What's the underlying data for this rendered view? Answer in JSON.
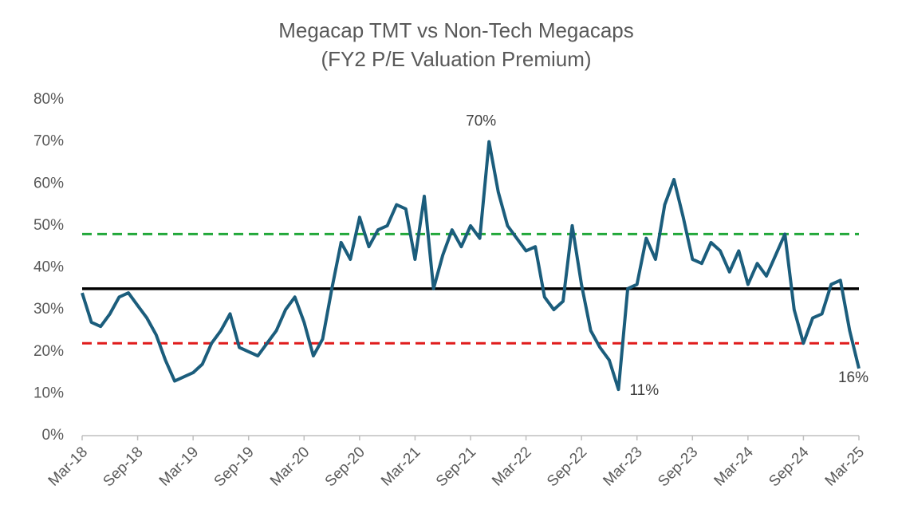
{
  "chart_data": {
    "type": "line",
    "title": "Megacap TMT vs Non-Tech Megacaps",
    "subtitle": "(FY2 P/E Valuation Premium)",
    "categories": [
      "Mar-18",
      null,
      null,
      null,
      null,
      null,
      "Sep-18",
      null,
      null,
      null,
      null,
      null,
      "Mar-19",
      null,
      null,
      null,
      null,
      null,
      "Sep-19",
      null,
      null,
      null,
      null,
      null,
      "Mar-20",
      null,
      null,
      null,
      null,
      null,
      "Sep-20",
      null,
      null,
      null,
      null,
      null,
      "Mar-21",
      null,
      null,
      null,
      null,
      null,
      "Sep-21",
      null,
      null,
      null,
      null,
      null,
      "Mar-22",
      null,
      null,
      null,
      null,
      null,
      "Sep-22",
      null,
      null,
      null,
      null,
      null,
      "Mar-23",
      null,
      null,
      null,
      null,
      null,
      "Sep-23",
      null,
      null,
      null,
      null,
      null,
      "Mar-24",
      null,
      null,
      null,
      null,
      null,
      "Sep-24",
      null,
      null,
      null,
      null,
      null,
      "Mar-25"
    ],
    "series": [
      {
        "name": null,
        "color": "#1b5d7c",
        "values": [
          34,
          27,
          26,
          29,
          33,
          34,
          31,
          28,
          24,
          18,
          13,
          14,
          15,
          17,
          22,
          25,
          29,
          21,
          20,
          19,
          22,
          25,
          30,
          33,
          27,
          19,
          23,
          35,
          46,
          42,
          52,
          45,
          49,
          50,
          55,
          54,
          42,
          57,
          35,
          43,
          49,
          45,
          50,
          47,
          70,
          58,
          50,
          47,
          44,
          45,
          33,
          30,
          32,
          50,
          36,
          25,
          21,
          18,
          11,
          35,
          36,
          47,
          42,
          55,
          61,
          52,
          42,
          41,
          46,
          44,
          39,
          44,
          36,
          41,
          38,
          43,
          48,
          30,
          22,
          28,
          29,
          36,
          37,
          25,
          16
        ]
      }
    ],
    "ylim": [
      0,
      80
    ],
    "yticks": [
      {
        "value": 0,
        "label": "0%"
      },
      {
        "value": 10,
        "label": "10%"
      },
      {
        "value": 20,
        "label": "20%"
      },
      {
        "value": 30,
        "label": "30%"
      },
      {
        "value": 40,
        "label": "40%"
      },
      {
        "value": 50,
        "label": "50%"
      },
      {
        "value": 60,
        "label": "60%"
      },
      {
        "value": 70,
        "label": "70%"
      },
      {
        "value": 80,
        "label": "80%"
      }
    ],
    "reference_lines": [
      {
        "value": 48,
        "color": "#22a83a",
        "dashed": true
      },
      {
        "value": 35,
        "color": "#000000",
        "dashed": false
      },
      {
        "value": 22,
        "color": "#e01b1b",
        "dashed": true
      }
    ],
    "annotations": [
      "70%",
      "11%",
      "16%"
    ]
  }
}
